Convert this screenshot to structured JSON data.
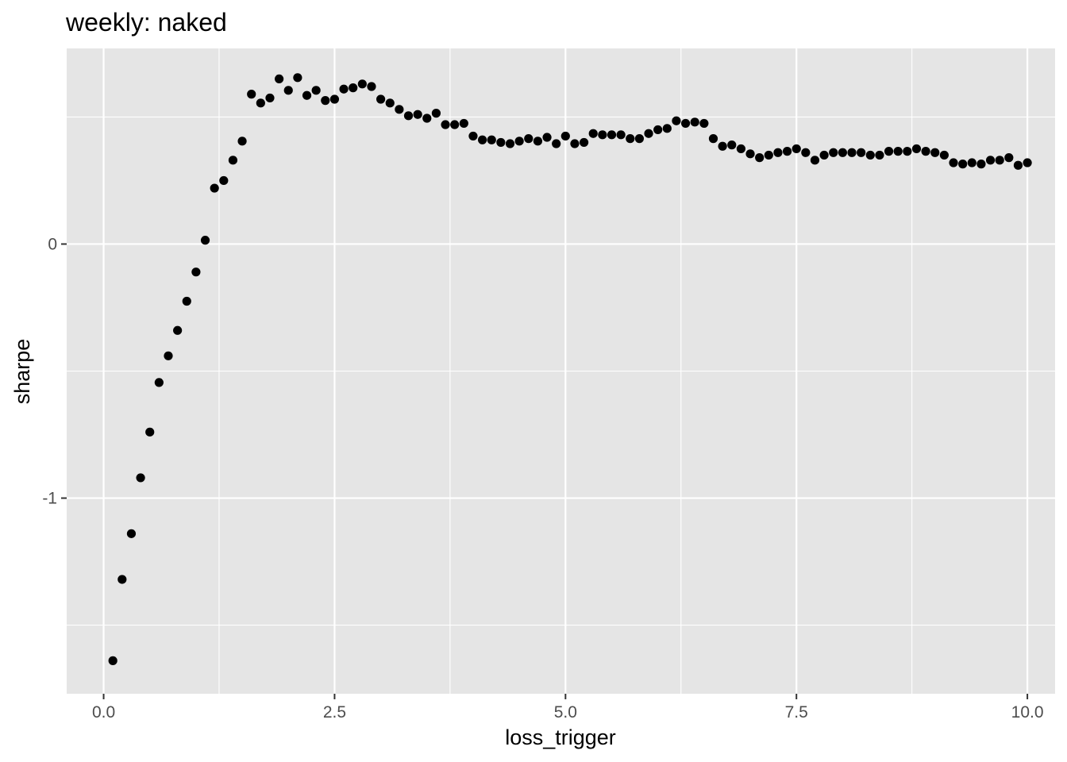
{
  "chart_data": {
    "type": "scatter",
    "title": "weekly: naked",
    "xlabel": "loss_trigger",
    "ylabel": "sharpe",
    "xlim": [
      -0.4,
      10.3
    ],
    "ylim": [
      -1.77,
      0.77
    ],
    "x_ticks": [
      0.0,
      2.5,
      5.0,
      7.5,
      10.0
    ],
    "x_tick_labels": [
      "0.0",
      "2.5",
      "5.0",
      "7.5",
      "10.0"
    ],
    "x_minor_ticks": [
      1.25,
      3.75,
      6.25,
      8.75
    ],
    "y_ticks": [
      0,
      -1
    ],
    "y_tick_labels": [
      "0",
      "-1"
    ],
    "y_minor_ticks": [
      0.5,
      -0.5,
      -1.5
    ],
    "grid": true,
    "panel_background": "#e5e5e5",
    "grid_color": "#ffffff",
    "point_color": "#000000",
    "series": [
      {
        "name": "sharpe",
        "x": [
          0.1,
          0.2,
          0.3,
          0.4,
          0.5,
          0.6,
          0.7,
          0.8,
          0.9,
          1.0,
          1.1,
          1.2,
          1.3,
          1.4,
          1.5,
          1.6,
          1.7,
          1.8,
          1.9,
          2.0,
          2.1,
          2.2,
          2.3,
          2.4,
          2.5,
          2.6,
          2.7,
          2.8,
          2.9,
          3.0,
          3.1,
          3.2,
          3.3,
          3.4,
          3.5,
          3.6,
          3.7,
          3.8,
          3.9,
          4.0,
          4.1,
          4.2,
          4.3,
          4.4,
          4.5,
          4.6,
          4.7,
          4.8,
          4.9,
          5.0,
          5.1,
          5.2,
          5.3,
          5.4,
          5.5,
          5.6,
          5.7,
          5.8,
          5.9,
          6.0,
          6.1,
          6.2,
          6.3,
          6.4,
          6.5,
          6.6,
          6.7,
          6.8,
          6.9,
          7.0,
          7.1,
          7.2,
          7.3,
          7.4,
          7.5,
          7.6,
          7.7,
          7.8,
          7.9,
          8.0,
          8.1,
          8.2,
          8.3,
          8.4,
          8.5,
          8.6,
          8.7,
          8.8,
          8.9,
          9.0,
          9.1,
          9.2,
          9.3,
          9.4,
          9.5,
          9.6,
          9.7,
          9.8,
          9.9,
          10.0
        ],
        "y": [
          -1.64,
          -1.32,
          -1.14,
          -0.92,
          -0.74,
          -0.545,
          -0.44,
          -0.34,
          -0.225,
          -0.11,
          0.015,
          0.22,
          0.25,
          0.33,
          0.405,
          0.59,
          0.555,
          0.575,
          0.65,
          0.605,
          0.655,
          0.585,
          0.605,
          0.565,
          0.57,
          0.61,
          0.615,
          0.63,
          0.62,
          0.57,
          0.555,
          0.53,
          0.505,
          0.51,
          0.495,
          0.515,
          0.47,
          0.47,
          0.475,
          0.425,
          0.41,
          0.41,
          0.4,
          0.395,
          0.405,
          0.415,
          0.405,
          0.42,
          0.395,
          0.425,
          0.395,
          0.4,
          0.435,
          0.43,
          0.43,
          0.43,
          0.415,
          0.415,
          0.435,
          0.45,
          0.455,
          0.485,
          0.475,
          0.48,
          0.475,
          0.415,
          0.385,
          0.39,
          0.375,
          0.355,
          0.34,
          0.35,
          0.36,
          0.365,
          0.375,
          0.36,
          0.33,
          0.35,
          0.36,
          0.36,
          0.36,
          0.36,
          0.35,
          0.35,
          0.365,
          0.365,
          0.365,
          0.375,
          0.365,
          0.36,
          0.35,
          0.32,
          0.315,
          0.32,
          0.315,
          0.33,
          0.33,
          0.34,
          0.31,
          0.32
        ]
      }
    ]
  }
}
